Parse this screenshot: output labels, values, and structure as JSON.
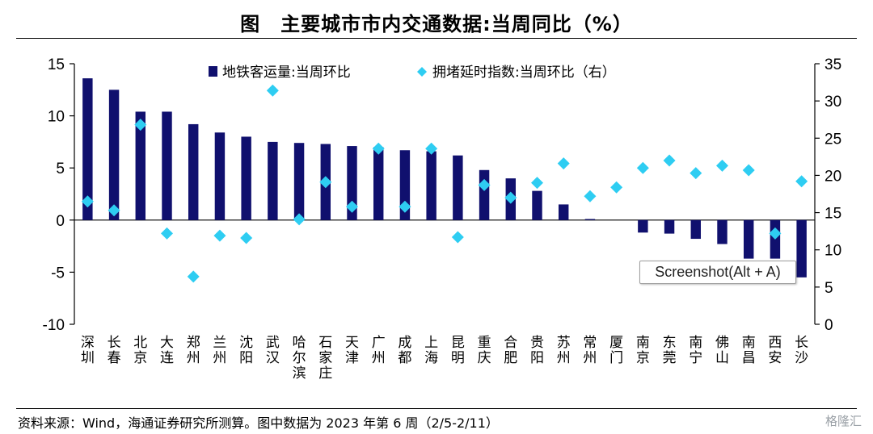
{
  "header": {
    "title": "图　主要城市市内交通数据:当周同比（%）"
  },
  "footer": {
    "source": "资料来源：Wind，海通证券研究所测算。图中数据为 2023 年第 6 周（2/5-2/11）",
    "watermark": "格隆汇"
  },
  "tooltip": {
    "text": "Screenshot(Alt + A)"
  },
  "colors": {
    "bar": "#10106e",
    "marker": "#2ecdf2",
    "axis": "#000000"
  },
  "chart_data": {
    "type": "bar",
    "categories": [
      "深圳",
      "长春",
      "北京",
      "大连",
      "郑州",
      "兰州",
      "沈阳",
      "武汉",
      "哈尔滨",
      "石家庄",
      "天津",
      "广州",
      "成都",
      "上海",
      "昆明",
      "重庆",
      "合肥",
      "贵阳",
      "苏州",
      "常州",
      "厦门",
      "南京",
      "东莞",
      "南宁",
      "佛山",
      "南昌",
      "西安",
      "长沙"
    ],
    "series": [
      {
        "name": "地铁客运量:当周环比",
        "type": "bar",
        "axis": "left",
        "values": [
          13.6,
          12.5,
          10.4,
          10.4,
          9.2,
          8.4,
          8.0,
          7.5,
          7.4,
          7.3,
          7.1,
          7.0,
          6.7,
          6.6,
          6.2,
          4.8,
          4.0,
          2.8,
          1.5,
          0.1,
          null,
          -1.2,
          -1.3,
          -1.8,
          -2.3,
          -3.7,
          -3.7,
          -5.5
        ]
      },
      {
        "name": "拥堵延时指数:当周环比（右）",
        "type": "scatter",
        "axis": "right",
        "values": [
          16.5,
          15.3,
          26.8,
          12.2,
          6.4,
          11.9,
          11.6,
          31.4,
          14.1,
          19.1,
          15.8,
          23.6,
          15.8,
          23.6,
          11.7,
          18.7,
          17.0,
          19.0,
          21.6,
          17.2,
          18.4,
          21.0,
          22.0,
          20.3,
          21.3,
          20.7,
          12.2,
          19.2
        ]
      }
    ],
    "y_left": {
      "min": -10,
      "max": 15,
      "ticks": [
        -10,
        -5,
        0,
        5,
        10,
        15
      ]
    },
    "y_right": {
      "min": 0,
      "max": 35,
      "ticks": [
        0,
        5,
        10,
        15,
        20,
        25,
        30,
        35
      ]
    },
    "legend_position": "top",
    "grid": false
  }
}
